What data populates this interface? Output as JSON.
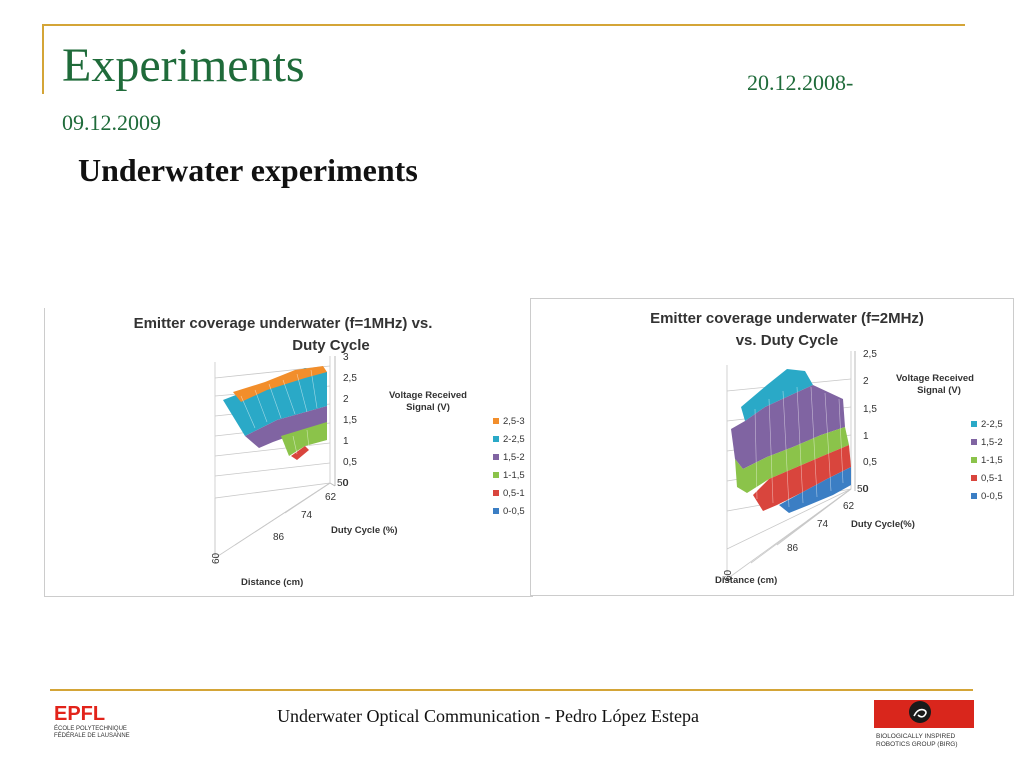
{
  "slide": {
    "title": "Experiments",
    "date_start": "20.12.2008-",
    "date_end": "09.12.2009",
    "subtitle": "Underwater experiments",
    "footer": "Underwater Optical Communication - Pedro López Estepa"
  },
  "logos": {
    "epfl": {
      "mark": "EPFL",
      "line1": "ÉCOLE POLYTECHNIQUE",
      "line2": "FÉDÉRALE DE LAUSANNE"
    },
    "birg": {
      "line1": "BIOLOGICALLY INSPIRED",
      "line2": "ROBOTICS GROUP (BIRG)"
    }
  },
  "colors": {
    "title_green": "#1f6b3a",
    "rule_gold": "#d4a537",
    "band_orange": "#f28e2b",
    "band_cyan": "#2aa9c7",
    "band_purple": "#8064a2",
    "band_green": "#8bc34a",
    "band_red": "#d9453d",
    "band_blue": "#3b7ec4"
  },
  "chart_data": [
    {
      "type": "surface",
      "title": "Emitter coverage underwater (f=1MHz) vs. Duty Cycle",
      "title_line1": "Emitter coverage underwater (f=1MHz) vs.",
      "title_line2": "Duty Cycle",
      "zlabel_line1": "Voltage Received",
      "zlabel_line2": "Signal (V)",
      "xlabel": "Duty Cycle (%)",
      "ylabel": "Distance (cm)",
      "z_ticks": [
        "3",
        "2,5",
        "2",
        "1,5",
        "1",
        "0,5",
        "0"
      ],
      "zlim": [
        0,
        3
      ],
      "duty_cycle_ticks": [
        "50",
        "62",
        "74",
        "86"
      ],
      "distance_ticks": [
        "60"
      ],
      "legend_position": "right",
      "legend": [
        {
          "label": "2,5-3",
          "color": "#f28e2b"
        },
        {
          "label": "2-2,5",
          "color": "#2aa9c7"
        },
        {
          "label": "1,5-2",
          "color": "#8064a2"
        },
        {
          "label": "1-1,5",
          "color": "#8bc34a"
        },
        {
          "label": "0,5-1",
          "color": "#d9453d"
        },
        {
          "label": "0-0,5",
          "color": "#3b7ec4"
        }
      ]
    },
    {
      "type": "surface",
      "title": "Emitter coverage underwater (f=2MHz) vs. Duty Cycle",
      "title_line1": "Emitter coverage underwater (f=2MHz)",
      "title_line2": "vs. Duty Cycle",
      "zlabel_line1": "Voltage Received",
      "zlabel_line2": "Signal (V)",
      "xlabel": "Duty Cycle(%)",
      "ylabel": "Distance (cm)",
      "z_ticks": [
        "2,5",
        "2",
        "1,5",
        "1",
        "0,5",
        "0"
      ],
      "zlim": [
        0,
        2.5
      ],
      "duty_cycle_ticks": [
        "50",
        "62",
        "74",
        "86"
      ],
      "distance_ticks": [
        "60"
      ],
      "legend_position": "right",
      "legend": [
        {
          "label": "2-2,5",
          "color": "#2aa9c7"
        },
        {
          "label": "1,5-2",
          "color": "#8064a2"
        },
        {
          "label": "1-1,5",
          "color": "#8bc34a"
        },
        {
          "label": "0,5-1",
          "color": "#d9453d"
        },
        {
          "label": "0-0,5",
          "color": "#3b7ec4"
        }
      ]
    }
  ]
}
